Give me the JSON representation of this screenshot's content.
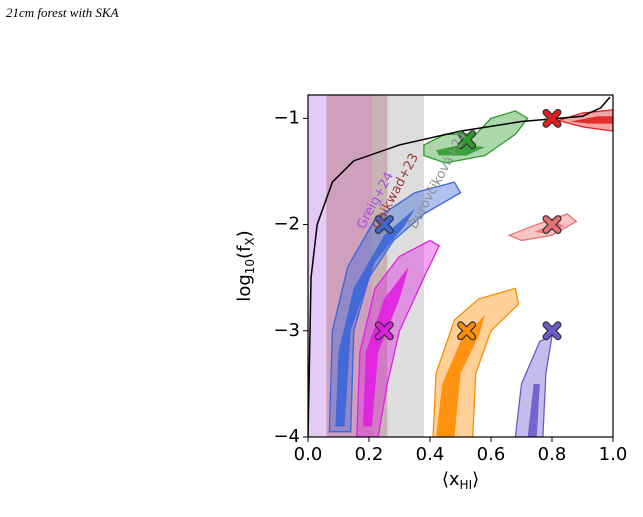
{
  "header": "21cm forest with SKA",
  "chart_data": {
    "type": "contour",
    "xlabel": [
      "⟨x",
      "HI",
      "⟩"
    ],
    "ylabel": [
      "log",
      "10",
      "(f",
      "X",
      ")"
    ],
    "xlim": [
      0,
      1.0
    ],
    "ylim": [
      -4,
      -0.78
    ],
    "xticks": [
      {
        "value": 0,
        "label": "0.0"
      },
      0.2,
      0.4,
      0.6,
      0.8,
      {
        "value": 1,
        "label": "1.0"
      }
    ],
    "yticks": [
      -4,
      -3,
      -2,
      -1
    ],
    "bands": [
      {
        "label": "Greig+24",
        "range": [
          0,
          0.21
        ],
        "color": "#a64ee0"
      },
      {
        "label": "Gaikwad+23",
        "range": [
          0.06,
          0.26
        ],
        "color": "#a03a3a"
      },
      {
        "label": "Ďurovčíková+24",
        "range": [
          0.21,
          0.38
        ],
        "color": "#909090"
      }
    ],
    "curve": {
      "color": "#000000",
      "x": [
        0.0,
        0.01,
        0.03,
        0.08,
        0.15,
        0.3,
        0.5,
        0.7,
        0.9,
        0.96,
        0.99
      ],
      "y": [
        -4,
        -2.5,
        -2.0,
        -1.6,
        -1.4,
        -1.25,
        -1.12,
        -1.03,
        -0.98,
        -0.9,
        -0.8
      ]
    },
    "series": [
      {
        "color": "#2e9a2e",
        "truth": [
          0.52,
          -1.2
        ],
        "outer": {
          "x": [
            0.38,
            0.45,
            0.55,
            0.6,
            0.68,
            0.72,
            0.68,
            0.58,
            0.45,
            0.38
          ],
          "y": [
            -1.25,
            -1.15,
            -1.15,
            -1.0,
            -0.93,
            -1.0,
            -1.15,
            -1.35,
            -1.42,
            -1.35
          ]
        },
        "inner": {
          "x": [
            0.42,
            0.5,
            0.58,
            0.52,
            0.43
          ],
          "y": [
            -1.3,
            -1.25,
            -1.27,
            -1.35,
            -1.35
          ]
        }
      },
      {
        "color": "#e02020",
        "truth": [
          0.8,
          -1
        ],
        "outer": {
          "x": [
            0.82,
            0.9,
            1.0,
            1.0,
            0.9
          ],
          "y": [
            -1.02,
            -0.95,
            -0.92,
            -1.12,
            -1.08
          ]
        },
        "inner": {
          "x": [
            0.86,
            0.95,
            1.0,
            1.0,
            0.92
          ],
          "y": [
            -1.03,
            -0.98,
            -0.98,
            -1.05,
            -1.05
          ]
        }
      },
      {
        "color": "#e87070",
        "truth": [
          0.8,
          -2
        ],
        "outer": {
          "x": [
            0.66,
            0.75,
            0.85,
            0.88,
            0.8,
            0.7
          ],
          "y": [
            -2.1,
            -2.0,
            -1.9,
            -1.97,
            -2.1,
            -2.15
          ]
        },
        "inner": {
          "x": [
            0.74,
            0.82,
            0.84,
            0.77
          ],
          "y": [
            -2.07,
            -1.98,
            -2.02,
            -2.08
          ]
        }
      },
      {
        "color": "#3a66d8",
        "truth": [
          0.25,
          -2
        ],
        "outer": {
          "x": [
            0.07,
            0.08,
            0.13,
            0.22,
            0.35,
            0.48,
            0.5,
            0.38,
            0.28,
            0.2,
            0.15,
            0.14
          ],
          "y": [
            -3.95,
            -3.0,
            -2.4,
            -1.95,
            -1.7,
            -1.6,
            -1.7,
            -1.9,
            -2.15,
            -2.5,
            -3.0,
            -3.95
          ]
        },
        "inner": {
          "x": [
            0.09,
            0.1,
            0.15,
            0.25,
            0.35,
            0.32,
            0.22,
            0.14,
            0.12
          ],
          "y": [
            -3.9,
            -3.2,
            -2.6,
            -2.1,
            -1.85,
            -2.0,
            -2.35,
            -3.0,
            -3.9
          ]
        }
      },
      {
        "color": "#e020e0",
        "truth": [
          0.25,
          -3
        ],
        "outer": {
          "x": [
            0.16,
            0.17,
            0.22,
            0.3,
            0.4,
            0.43,
            0.38,
            0.3,
            0.26,
            0.23
          ],
          "y": [
            -4.0,
            -3.2,
            -2.6,
            -2.3,
            -2.15,
            -2.2,
            -2.5,
            -3.0,
            -3.5,
            -4.0
          ]
        },
        "inner": {
          "x": [
            0.18,
            0.19,
            0.25,
            0.33,
            0.3,
            0.23,
            0.21
          ],
          "y": [
            -3.9,
            -3.2,
            -2.7,
            -2.4,
            -2.7,
            -3.2,
            -3.9
          ]
        }
      },
      {
        "color": "#ff8c00",
        "truth": [
          0.52,
          -3
        ],
        "outer": {
          "x": [
            0.41,
            0.42,
            0.48,
            0.56,
            0.68,
            0.69,
            0.6,
            0.55,
            0.54
          ],
          "y": [
            -4.0,
            -3.4,
            -2.9,
            -2.7,
            -2.6,
            -2.75,
            -3.0,
            -3.4,
            -4.0
          ]
        },
        "inner": {
          "x": [
            0.42,
            0.44,
            0.5,
            0.58,
            0.56,
            0.5,
            0.48
          ],
          "y": [
            -4.0,
            -3.5,
            -3.1,
            -2.85,
            -3.05,
            -3.4,
            -4.0
          ]
        }
      },
      {
        "color": "#6a5acd",
        "truth": [
          0.8,
          -3
        ],
        "outer": {
          "x": [
            0.68,
            0.7,
            0.76,
            0.8,
            0.78,
            0.77
          ],
          "y": [
            -4.0,
            -3.5,
            -3.1,
            -3.05,
            -3.4,
            -4.0
          ]
        },
        "inner": {
          "x": [
            0.72,
            0.74,
            0.76,
            0.75
          ],
          "y": [
            -4.0,
            -3.5,
            -3.5,
            -4.0
          ]
        }
      }
    ]
  }
}
